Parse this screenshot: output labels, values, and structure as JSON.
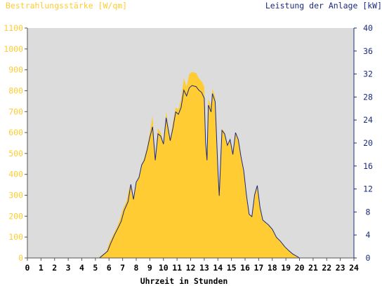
{
  "chart_data": {
    "type": "area",
    "title_left": "Bestrahlungsstärke [W/qm]",
    "title_right": "Leistung der Anlage [kW]",
    "xlabel": "Uhrzeit in Stunden",
    "x_ticks": [
      "0",
      "1",
      "2",
      "3",
      "4",
      "5",
      "6",
      "7",
      "8",
      "9",
      "10",
      "11",
      "12",
      "13",
      "14",
      "15",
      "16",
      "17",
      "18",
      "19",
      "20",
      "21",
      "22",
      "23",
      "24"
    ],
    "y_left_ticks": [
      "0",
      "100",
      "200",
      "300",
      "400",
      "500",
      "600",
      "700",
      "800",
      "900",
      "1000",
      "1100"
    ],
    "y_right_ticks": [
      "0",
      "4",
      "8",
      "12",
      "16",
      "20",
      "24",
      "28",
      "32",
      "36",
      "40"
    ],
    "ylim_left": [
      0,
      1100
    ],
    "ylim_right": [
      0,
      40
    ],
    "xlim": [
      0,
      24
    ],
    "grid": false,
    "colors": {
      "irradiance": "#ffcc33",
      "power": "#1a2a80",
      "plot_bg": "#dcdcdc",
      "left_axis_text": "#ffcc33",
      "right_axis_text": "#1a2a80"
    },
    "series": [
      {
        "name": "Bestrahlungsstärke [W/qm]",
        "axis": "left",
        "points": [
          [
            0,
            0
          ],
          [
            5.2,
            0
          ],
          [
            5.5,
            15
          ],
          [
            5.8,
            30
          ],
          [
            6.0,
            70
          ],
          [
            6.3,
            110
          ],
          [
            6.6,
            150
          ],
          [
            6.8,
            185
          ],
          [
            7.0,
            230
          ],
          [
            7.3,
            275
          ],
          [
            7.5,
            340
          ],
          [
            7.7,
            330
          ],
          [
            7.8,
            280
          ],
          [
            8.0,
            360
          ],
          [
            8.2,
            390
          ],
          [
            8.4,
            450
          ],
          [
            8.6,
            480
          ],
          [
            8.8,
            530
          ],
          [
            9.0,
            600
          ],
          [
            9.2,
            680
          ],
          [
            9.4,
            470
          ],
          [
            9.6,
            620
          ],
          [
            9.8,
            600
          ],
          [
            10.0,
            550
          ],
          [
            10.2,
            700
          ],
          [
            10.5,
            570
          ],
          [
            10.7,
            650
          ],
          [
            10.9,
            720
          ],
          [
            11.1,
            710
          ],
          [
            11.3,
            760
          ],
          [
            11.5,
            860
          ],
          [
            11.7,
            820
          ],
          [
            11.9,
            880
          ],
          [
            12.1,
            890
          ],
          [
            12.4,
            885
          ],
          [
            12.6,
            860
          ],
          [
            12.8,
            845
          ],
          [
            13.0,
            820
          ],
          [
            13.1,
            550
          ],
          [
            13.2,
            480
          ],
          [
            13.3,
            760
          ],
          [
            13.5,
            730
          ],
          [
            13.6,
            810
          ],
          [
            13.8,
            770
          ],
          [
            14.0,
            420
          ],
          [
            14.1,
            300
          ],
          [
            14.3,
            620
          ],
          [
            14.5,
            600
          ],
          [
            14.7,
            540
          ],
          [
            14.9,
            570
          ],
          [
            15.1,
            500
          ],
          [
            15.3,
            600
          ],
          [
            15.5,
            570
          ],
          [
            15.7,
            490
          ],
          [
            15.9,
            420
          ],
          [
            16.1,
            300
          ],
          [
            16.3,
            210
          ],
          [
            16.5,
            200
          ],
          [
            16.7,
            300
          ],
          [
            16.9,
            350
          ],
          [
            17.1,
            250
          ],
          [
            17.3,
            180
          ],
          [
            17.5,
            170
          ],
          [
            17.7,
            160
          ],
          [
            18.0,
            140
          ],
          [
            18.3,
            100
          ],
          [
            18.6,
            80
          ],
          [
            18.9,
            55
          ],
          [
            19.2,
            35
          ],
          [
            19.5,
            20
          ],
          [
            19.8,
            8
          ],
          [
            20.0,
            0
          ],
          [
            24,
            0
          ]
        ]
      },
      {
        "name": "Leistung der Anlage [kW]",
        "axis": "right",
        "points": [
          [
            0,
            0
          ],
          [
            5.3,
            0
          ],
          [
            5.6,
            0.6
          ],
          [
            5.9,
            1.2
          ],
          [
            6.1,
            2.4
          ],
          [
            6.4,
            4.0
          ],
          [
            6.7,
            5.4
          ],
          [
            6.9,
            6.4
          ],
          [
            7.1,
            8.2
          ],
          [
            7.4,
            9.8
          ],
          [
            7.6,
            12.8
          ],
          [
            7.8,
            10.2
          ],
          [
            8.0,
            13.2
          ],
          [
            8.2,
            14.0
          ],
          [
            8.4,
            16.2
          ],
          [
            8.6,
            17.0
          ],
          [
            8.8,
            18.8
          ],
          [
            9.0,
            21.0
          ],
          [
            9.2,
            22.8
          ],
          [
            9.4,
            17.0
          ],
          [
            9.6,
            21.6
          ],
          [
            9.8,
            21.2
          ],
          [
            10.0,
            19.8
          ],
          [
            10.2,
            24.4
          ],
          [
            10.5,
            20.4
          ],
          [
            10.7,
            22.6
          ],
          [
            10.9,
            25.4
          ],
          [
            11.1,
            25.0
          ],
          [
            11.3,
            26.2
          ],
          [
            11.5,
            29.2
          ],
          [
            11.7,
            28.2
          ],
          [
            11.9,
            29.6
          ],
          [
            12.1,
            30.0
          ],
          [
            12.4,
            29.8
          ],
          [
            12.6,
            29.2
          ],
          [
            12.8,
            28.8
          ],
          [
            13.0,
            27.8
          ],
          [
            13.1,
            20.0
          ],
          [
            13.2,
            17.0
          ],
          [
            13.3,
            26.6
          ],
          [
            13.5,
            25.4
          ],
          [
            13.6,
            28.6
          ],
          [
            13.8,
            27.2
          ],
          [
            14.0,
            15.4
          ],
          [
            14.1,
            10.8
          ],
          [
            14.3,
            22.2
          ],
          [
            14.5,
            21.6
          ],
          [
            14.7,
            19.6
          ],
          [
            14.9,
            20.6
          ],
          [
            15.1,
            18.0
          ],
          [
            15.3,
            21.8
          ],
          [
            15.5,
            20.6
          ],
          [
            15.7,
            17.6
          ],
          [
            15.9,
            15.2
          ],
          [
            16.1,
            11.0
          ],
          [
            16.3,
            7.6
          ],
          [
            16.5,
            7.2
          ],
          [
            16.7,
            11.0
          ],
          [
            16.9,
            12.6
          ],
          [
            17.1,
            8.8
          ],
          [
            17.3,
            6.6
          ],
          [
            17.5,
            6.2
          ],
          [
            17.7,
            5.8
          ],
          [
            18.0,
            5.0
          ],
          [
            18.3,
            3.6
          ],
          [
            18.6,
            2.9
          ],
          [
            18.9,
            2.0
          ],
          [
            19.2,
            1.3
          ],
          [
            19.5,
            0.7
          ],
          [
            19.8,
            0.3
          ],
          [
            20.0,
            0
          ],
          [
            24,
            0
          ]
        ]
      }
    ]
  }
}
